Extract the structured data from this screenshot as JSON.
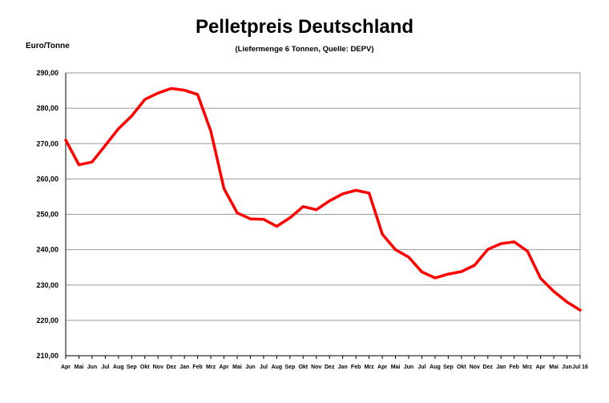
{
  "chart_data": {
    "type": "line",
    "title": "Pelletpreis Deutschland",
    "subtitle": "(Liefermenge 6 Tonnen, Quelle: DEPV)",
    "ylabel": "Euro/Tonne",
    "xlabel": "",
    "ylim": [
      210,
      290
    ],
    "yticks": [
      "210,00",
      "220,00",
      "230,00",
      "240,00",
      "250,00",
      "260,00",
      "270,00",
      "280,00",
      "290,00"
    ],
    "grid": true,
    "categories": [
      "Apr",
      "Mai",
      "Jun",
      "Jul",
      "Aug",
      "Sep",
      "Okt",
      "Nov",
      "Dez",
      "Jan",
      "Feb",
      "Mrz",
      "Apr",
      "Mai",
      "Jun",
      "Jul",
      "Aug",
      "Sep",
      "Okt",
      "Nov",
      "Dez",
      "Jan",
      "Feb",
      "Mrz",
      "Apr",
      "Mai",
      "Jun",
      "Jul",
      "Aug",
      "Sep",
      "Okt",
      "Nov",
      "Dez",
      "Jan",
      "Feb",
      "Mrz",
      "Apr",
      "Mai",
      "Jun",
      "Jul 16"
    ],
    "series": [
      {
        "color": "#ff0000",
        "values": [
          271.0,
          264.0,
          264.8,
          269.5,
          274.2,
          277.8,
          282.5,
          284.3,
          285.6,
          285.1,
          283.9,
          273.5,
          257.3,
          250.4,
          248.7,
          248.6,
          246.6,
          249.0,
          252.2,
          251.3,
          253.8,
          255.8,
          256.8,
          256.0,
          244.4,
          240.0,
          237.9,
          233.7,
          232.0,
          233.1,
          233.8,
          235.6,
          240.1,
          241.7,
          242.2,
          239.6,
          231.9,
          228.2,
          225.2,
          222.9
        ]
      }
    ]
  }
}
